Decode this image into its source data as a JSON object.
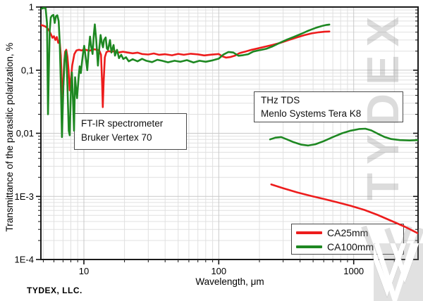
{
  "watermark": {
    "text": "TYDEX"
  },
  "footer": {
    "company": "TYDEX, LLC."
  },
  "chart_data": {
    "type": "line",
    "title": "",
    "xlabel": "Wavelength, μm",
    "ylabel": "Transmittance of the parasitic polarization, %",
    "xscale": "log",
    "yscale": "log",
    "xlim": [
      4.8,
      3000
    ],
    "ylim": [
      0.0001,
      1
    ],
    "grid": true,
    "x_ticks": [
      {
        "v": 10,
        "label": "10"
      },
      {
        "v": 100,
        "label": "100"
      },
      {
        "v": 1000,
        "label": "1000"
      }
    ],
    "y_ticks": [
      {
        "v": 1,
        "label": "1"
      },
      {
        "v": 0.1,
        "label": "0,1"
      },
      {
        "v": 0.01,
        "label": "0,01"
      },
      {
        "v": 0.001,
        "label": "1E-3"
      },
      {
        "v": 0.0001,
        "label": "1E-4"
      }
    ],
    "legend": {
      "position": "bottom-right",
      "entries": [
        {
          "label": "CA25mm",
          "color": "#ed1c1c"
        },
        {
          "label": "CA100mm",
          "color": "#1e8822"
        }
      ]
    },
    "annotations": [
      {
        "id": "ftir",
        "lines": [
          "FT-IR spectrometer",
          "Bruker Vertex 70"
        ]
      },
      {
        "id": "thz",
        "lines": [
          "THz TDS",
          "Menlo Systems Tera K8"
        ]
      }
    ],
    "series": [
      {
        "name": "CA25mm",
        "instrument": "FT-IR",
        "color": "#ed1c1c",
        "points": [
          [
            4.8,
            0.52
          ],
          [
            5.1,
            0.5
          ],
          [
            5.3,
            0.475
          ],
          [
            5.5,
            0.43
          ],
          [
            5.7,
            0.37
          ],
          [
            5.85,
            0.325
          ],
          [
            6.0,
            0.345
          ],
          [
            6.15,
            0.3
          ],
          [
            6.3,
            0.335
          ],
          [
            6.45,
            0.27
          ],
          [
            6.6,
            0.3
          ],
          [
            6.75,
            0.17
          ],
          [
            6.87,
            0.05
          ],
          [
            6.95,
            0.031
          ],
          [
            7.1,
            0.1
          ],
          [
            7.25,
            0.195
          ],
          [
            7.4,
            0.21
          ],
          [
            7.55,
            0.165
          ],
          [
            7.7,
            0.1
          ],
          [
            7.85,
            0.048
          ],
          [
            8.0,
            0.07
          ],
          [
            8.2,
            0.12
          ],
          [
            8.5,
            0.18
          ],
          [
            8.8,
            0.205
          ],
          [
            9.2,
            0.21
          ],
          [
            9.6,
            0.205
          ],
          [
            10.0,
            0.213
          ],
          [
            10.5,
            0.208
          ],
          [
            11.0,
            0.203
          ],
          [
            11.5,
            0.21
          ],
          [
            12.0,
            0.214
          ],
          [
            12.5,
            0.21
          ],
          [
            13.0,
            0.205
          ],
          [
            13.4,
            0.175
          ],
          [
            13.65,
            0.06
          ],
          [
            13.8,
            0.026
          ],
          [
            14.0,
            0.065
          ],
          [
            14.3,
            0.16
          ],
          [
            14.7,
            0.193
          ],
          [
            15.2,
            0.2
          ],
          [
            16,
            0.196
          ],
          [
            17,
            0.2
          ],
          [
            18,
            0.19
          ],
          [
            19.5,
            0.196
          ],
          [
            21,
            0.19
          ],
          [
            23,
            0.185
          ],
          [
            25,
            0.189
          ],
          [
            27,
            0.18
          ],
          [
            30,
            0.177
          ],
          [
            33,
            0.184
          ],
          [
            36,
            0.175
          ],
          [
            40,
            0.179
          ],
          [
            45,
            0.172
          ],
          [
            50,
            0.181
          ],
          [
            55,
            0.175
          ],
          [
            62,
            0.182
          ],
          [
            70,
            0.178
          ],
          [
            78,
            0.171
          ],
          [
            88,
            0.176
          ],
          [
            100,
            0.18
          ],
          [
            106,
            0.166
          ],
          [
            113,
            0.158
          ],
          [
            121,
            0.161
          ],
          [
            131,
            0.169
          ],
          [
            142,
            0.186
          ],
          [
            158,
            0.197
          ],
          [
            175,
            0.21
          ],
          [
            196,
            0.222
          ],
          [
            220,
            0.235
          ],
          [
            250,
            0.251
          ],
          [
            285,
            0.27
          ],
          [
            330,
            0.3
          ],
          [
            380,
            0.331
          ],
          [
            430,
            0.358
          ],
          [
            490,
            0.383
          ],
          [
            550,
            0.398
          ],
          [
            610,
            0.406
          ],
          [
            660,
            0.41
          ]
        ]
      },
      {
        "name": "CA100mm",
        "instrument": "FT-IR",
        "color": "#1e8822",
        "points": [
          [
            4.8,
            0.93
          ],
          [
            5.0,
            0.97
          ],
          [
            5.2,
            0.96
          ],
          [
            5.33,
            0.55
          ],
          [
            5.42,
            0.02
          ],
          [
            5.5,
            0.1
          ],
          [
            5.58,
            0.42
          ],
          [
            5.68,
            0.68
          ],
          [
            5.8,
            0.73
          ],
          [
            5.95,
            0.75
          ],
          [
            6.08,
            0.56
          ],
          [
            6.2,
            0.71
          ],
          [
            6.35,
            0.74
          ],
          [
            6.5,
            0.6
          ],
          [
            6.62,
            0.28
          ],
          [
            6.75,
            0.06
          ],
          [
            6.88,
            0.0087
          ],
          [
            7.05,
            0.055
          ],
          [
            7.2,
            0.15
          ],
          [
            7.38,
            0.2
          ],
          [
            7.55,
            0.06
          ],
          [
            7.72,
            0.011
          ],
          [
            7.85,
            0.0093
          ],
          [
            8.0,
            0.045
          ],
          [
            8.15,
            0.092
          ],
          [
            8.32,
            0.03
          ],
          [
            8.45,
            0.011
          ],
          [
            8.6,
            0.077
          ],
          [
            8.75,
            0.05
          ],
          [
            8.9,
            0.036
          ],
          [
            9.1,
            0.07
          ],
          [
            9.3,
            0.115
          ],
          [
            9.5,
            0.09
          ],
          [
            9.7,
            0.14
          ],
          [
            9.9,
            0.2
          ],
          [
            10.05,
            0.243
          ],
          [
            10.3,
            0.16
          ],
          [
            10.6,
            0.1
          ],
          [
            10.85,
            0.21
          ],
          [
            11.1,
            0.34
          ],
          [
            11.35,
            0.23
          ],
          [
            11.6,
            0.18
          ],
          [
            11.85,
            0.37
          ],
          [
            12.05,
            0.53
          ],
          [
            12.35,
            0.3
          ],
          [
            12.7,
            0.118
          ],
          [
            13.0,
            0.22
          ],
          [
            13.3,
            0.36
          ],
          [
            13.6,
            0.27
          ],
          [
            13.85,
            0.23
          ],
          [
            14.1,
            0.3
          ],
          [
            14.5,
            0.33
          ],
          [
            14.8,
            0.22
          ],
          [
            15.1,
            0.21
          ],
          [
            15.6,
            0.3
          ],
          [
            16.0,
            0.19
          ],
          [
            16.6,
            0.25
          ],
          [
            17.0,
            0.17
          ],
          [
            17.6,
            0.21
          ],
          [
            18.2,
            0.155
          ],
          [
            18.9,
            0.175
          ],
          [
            19.6,
            0.15
          ],
          [
            20.5,
            0.16
          ],
          [
            21.5,
            0.138
          ],
          [
            23,
            0.149
          ],
          [
            25,
            0.138
          ],
          [
            27,
            0.151
          ],
          [
            29,
            0.141
          ],
          [
            32,
            0.134
          ],
          [
            35,
            0.146
          ],
          [
            38,
            0.141
          ],
          [
            42,
            0.133
          ],
          [
            47,
            0.141
          ],
          [
            52,
            0.136
          ],
          [
            58,
            0.144
          ],
          [
            65,
            0.132
          ],
          [
            72,
            0.141
          ],
          [
            80,
            0.136
          ],
          [
            90,
            0.143
          ],
          [
            100,
            0.152
          ],
          [
            108,
            0.176
          ],
          [
            118,
            0.194
          ],
          [
            128,
            0.19
          ],
          [
            140,
            0.169
          ],
          [
            152,
            0.173
          ],
          [
            165,
            0.179
          ],
          [
            180,
            0.197
          ],
          [
            200,
            0.207
          ],
          [
            225,
            0.218
          ],
          [
            250,
            0.238
          ],
          [
            285,
            0.272
          ],
          [
            320,
            0.305
          ],
          [
            360,
            0.336
          ],
          [
            410,
            0.377
          ],
          [
            460,
            0.421
          ],
          [
            520,
            0.466
          ],
          [
            580,
            0.5
          ],
          [
            630,
            0.521
          ],
          [
            660,
            0.528
          ]
        ]
      },
      {
        "name": "CA25mm",
        "instrument": "THz TDS",
        "color": "#ed1c1c",
        "points": [
          [
            245,
            0.00155
          ],
          [
            300,
            0.00135
          ],
          [
            380,
            0.00116
          ],
          [
            480,
            0.00102
          ],
          [
            600,
            0.00091
          ],
          [
            750,
            0.00081
          ],
          [
            950,
            0.00071
          ],
          [
            1200,
            0.00061
          ],
          [
            1500,
            0.00051
          ],
          [
            1900,
            0.00041
          ],
          [
            2400,
            0.00033
          ],
          [
            3000,
            0.00026
          ]
        ]
      },
      {
        "name": "CA100mm",
        "instrument": "THz TDS",
        "color": "#1e8822",
        "points": [
          [
            240,
            0.008
          ],
          [
            262,
            0.0085
          ],
          [
            290,
            0.0087
          ],
          [
            320,
            0.008
          ],
          [
            360,
            0.0072
          ],
          [
            410,
            0.0066
          ],
          [
            460,
            0.0064
          ],
          [
            520,
            0.0067
          ],
          [
            600,
            0.0075
          ],
          [
            700,
            0.0087
          ],
          [
            820,
            0.01
          ],
          [
            950,
            0.011
          ],
          [
            1100,
            0.0117
          ],
          [
            1220,
            0.0118
          ],
          [
            1350,
            0.0111
          ],
          [
            1500,
            0.0099
          ],
          [
            1700,
            0.0087
          ],
          [
            1900,
            0.0081
          ],
          [
            2200,
            0.0078
          ],
          [
            2600,
            0.0077
          ],
          [
            3000,
            0.0078
          ]
        ]
      }
    ]
  }
}
